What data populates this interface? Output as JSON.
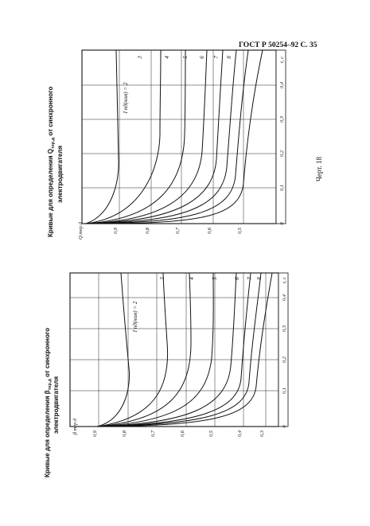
{
  "header": {
    "text": "ГОСТ Р 50254–92 С. 35"
  },
  "figure_label": "Черт. 18",
  "chart_data": [
    {
      "type": "line",
      "title": "Кривые для определения β тер.д от синхронного электродвигателя",
      "ylabel": "β тер.д",
      "xlabel": "t, c",
      "x_ticks": [
        "0",
        "0,1",
        "0,2",
        "0,3",
        "0,4",
        "t, c"
      ],
      "y_ticks": [
        "0,9",
        "0,8",
        "0,7",
        "0,6",
        "0,5",
        "0,4",
        "0,3"
      ],
      "param_label": "I пд(ном) = 2",
      "curve_labels": [
        "3",
        "4",
        "5",
        "6",
        "7",
        "8"
      ]
    },
    {
      "type": "line",
      "title": "Кривые для определения Q тер.д от синхронного электродвигателя",
      "ylabel": "Q тер.д",
      "xlabel": "t, c",
      "x_ticks": [
        "0",
        "0,1",
        "0,2",
        "0,3",
        "0,4",
        "t, c"
      ],
      "y_ticks": [
        "0,9",
        "0,8",
        "0,7",
        "0,6",
        "0,5"
      ],
      "param_label": "I пд(ном) = 2",
      "curve_labels": [
        "3",
        "4",
        "5",
        "6",
        "7",
        "8"
      ]
    }
  ]
}
